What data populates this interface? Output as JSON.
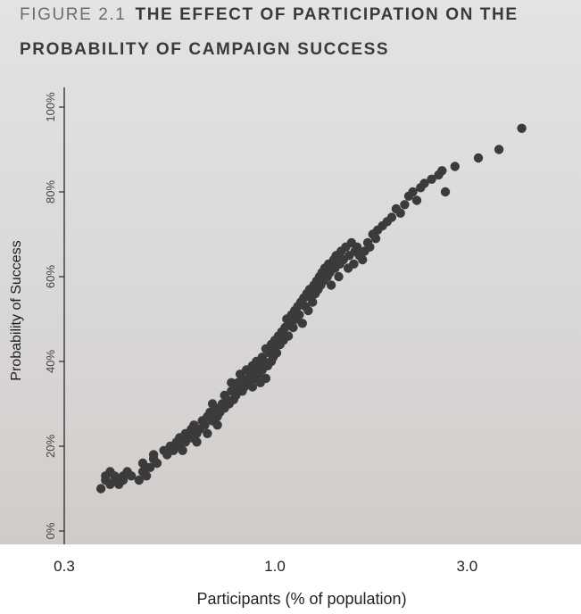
{
  "chart_data": {
    "type": "scatter",
    "title_prefix": "FIGURE 2.1",
    "title_line1": "THE EFFECT OF PARTICIPATION ON THE",
    "title_line2": "PROBABILITY OF CAMPAIGN SUCCESS",
    "xlabel": "Participants (% of population)",
    "ylabel": "Probability of Success",
    "x_scale": "log",
    "x_ticks": [
      0.3,
      1.0,
      3.0
    ],
    "x_tick_labels": [
      "0.3",
      "1.0",
      "3.0"
    ],
    "xlim": [
      0.3,
      4.2
    ],
    "y_ticks": [
      0,
      20,
      40,
      60,
      80,
      100
    ],
    "y_tick_labels": [
      "0%",
      "20%",
      "40%",
      "60%",
      "80%",
      "100%"
    ],
    "ylim": [
      0,
      100
    ],
    "grid": false,
    "point_color": "#3b3b3d",
    "x": [
      0.37,
      0.38,
      0.38,
      0.39,
      0.39,
      0.4,
      0.4,
      0.41,
      0.41,
      0.42,
      0.42,
      0.43,
      0.44,
      0.46,
      0.47,
      0.47,
      0.48,
      0.48,
      0.49,
      0.5,
      0.5,
      0.51,
      0.53,
      0.54,
      0.55,
      0.56,
      0.57,
      0.58,
      0.58,
      0.59,
      0.6,
      0.6,
      0.61,
      0.62,
      0.62,
      0.63,
      0.64,
      0.64,
      0.65,
      0.66,
      0.67,
      0.68,
      0.68,
      0.69,
      0.7,
      0.7,
      0.71,
      0.72,
      0.72,
      0.73,
      0.74,
      0.75,
      0.75,
      0.76,
      0.77,
      0.78,
      0.78,
      0.79,
      0.8,
      0.8,
      0.81,
      0.82,
      0.83,
      0.83,
      0.84,
      0.85,
      0.86,
      0.86,
      0.87,
      0.88,
      0.88,
      0.89,
      0.9,
      0.9,
      0.91,
      0.92,
      0.92,
      0.93,
      0.93,
      0.94,
      0.95,
      0.95,
      0.96,
      0.97,
      0.98,
      0.98,
      0.99,
      1.0,
      1.0,
      1.01,
      1.02,
      1.03,
      1.04,
      1.05,
      1.06,
      1.07,
      1.08,
      1.09,
      1.1,
      1.11,
      1.12,
      1.13,
      1.14,
      1.15,
      1.16,
      1.17,
      1.18,
      1.19,
      1.2,
      1.21,
      1.22,
      1.23,
      1.24,
      1.25,
      1.26,
      1.27,
      1.28,
      1.29,
      1.3,
      1.31,
      1.32,
      1.33,
      1.35,
      1.36,
      1.37,
      1.38,
      1.4,
      1.41,
      1.42,
      1.44,
      1.45,
      1.46,
      1.48,
      1.5,
      1.52,
      1.53,
      1.55,
      1.57,
      1.58,
      1.6,
      1.62,
      1.65,
      1.67,
      1.7,
      1.72,
      1.75,
      1.78,
      1.8,
      1.85,
      1.9,
      1.95,
      2.0,
      2.05,
      2.1,
      2.15,
      2.2,
      2.25,
      2.3,
      2.35,
      2.45,
      2.55,
      2.6,
      2.65,
      2.8,
      3.2,
      3.6,
      4.1
    ],
    "y": [
      10,
      12,
      13,
      11,
      14,
      12,
      13,
      12,
      11,
      13,
      12,
      14,
      13,
      12,
      14,
      16,
      13,
      15,
      15,
      17,
      18,
      16,
      19,
      18,
      20,
      19,
      21,
      22,
      20,
      19,
      23,
      21,
      22,
      22,
      24,
      25,
      21,
      23,
      24,
      26,
      25,
      27,
      23,
      28,
      26,
      30,
      29,
      27,
      25,
      28,
      30,
      32,
      29,
      31,
      30,
      33,
      35,
      31,
      32,
      34,
      35,
      37,
      33,
      36,
      34,
      38,
      35,
      36,
      37,
      39,
      34,
      36,
      38,
      40,
      37,
      39,
      35,
      41,
      38,
      40,
      43,
      36,
      39,
      42,
      40,
      44,
      41,
      45,
      43,
      42,
      46,
      44,
      47,
      45,
      48,
      50,
      46,
      49,
      51,
      48,
      52,
      50,
      53,
      51,
      54,
      49,
      55,
      53,
      56,
      52,
      57,
      55,
      54,
      58,
      56,
      59,
      57,
      60,
      58,
      61,
      59,
      62,
      60,
      63,
      61,
      58,
      64,
      62,
      65,
      60,
      63,
      66,
      64,
      67,
      62,
      65,
      68,
      63,
      66,
      67,
      65,
      64,
      66,
      68,
      67,
      70,
      69,
      71,
      72,
      73,
      74,
      76,
      75,
      77,
      79,
      80,
      78,
      81,
      82,
      83,
      84,
      85,
      80,
      86,
      88,
      90,
      95
    ]
  }
}
